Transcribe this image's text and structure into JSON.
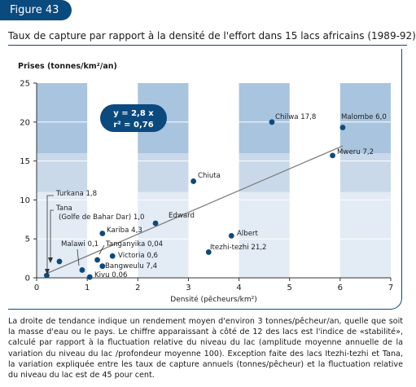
{
  "figure_label": "Figure 43",
  "title": "Taux de capture par rapport à la densité de l'effort dans 15 lacs africains (1989-92)",
  "note": "La droite de tendance indique un rendement moyen d'environ 3 tonnes/pêcheur/an, quelle que soit la masse d'eau ou le pays. Le chiffre apparaissant à côté de 12 des lacs est l'indice de «stabilité», calculé par rapport à la fluctuation relative du niveau du lac (amplitude moyenne annuelle de la variation du niveau du lac /profondeur moyenne 100). Exception faite des lacs Itezhi-tezhi et Tana, la variation expliquée entre les taux de capture annuels (tonnes/pêcheur) et la fluctuation relative du niveau du lac est de 45 pour cent.",
  "colors": {
    "accent": "#0b4a7e",
    "band_top": "#a9c4de",
    "band_mid": "#c9d9ea",
    "band_low": "#e3ebf5",
    "point": "#0b4a7e",
    "trend": "#7f7f7f"
  },
  "chart_data": {
    "type": "scatter",
    "title": "Taux de capture par rapport à la densité de l'effort dans 15 lacs africains (1989-92)",
    "xlabel": "Densité (pêcheurs/km²)",
    "ylabel": "Prises (tonnes/km²/an)",
    "xlim": [
      0,
      7
    ],
    "ylim": [
      0,
      25
    ],
    "xticks": [
      0,
      1,
      2,
      3,
      4,
      5,
      6,
      7
    ],
    "yticks": [
      0,
      5,
      10,
      15,
      20,
      25
    ],
    "grid": false,
    "trendline": {
      "equation": "y = 2,8 x",
      "r2": "r² = 0,76",
      "slope": 2.8,
      "x_range": [
        0.15,
        6.05
      ]
    },
    "points": [
      {
        "x": 0.2,
        "y": 0.3,
        "label": "Turkana 1,8"
      },
      {
        "x": 0.45,
        "y": 2.1,
        "label": "Tana\n(Golfe de Bahar Dar) 1,0"
      },
      {
        "x": 0.9,
        "y": 1.0,
        "label": "Malawi 0,1"
      },
      {
        "x": 1.05,
        "y": 0.1,
        "label": "Kivu 0,06"
      },
      {
        "x": 1.3,
        "y": 5.7,
        "label": "Kariba 4,3"
      },
      {
        "x": 1.2,
        "y": 2.3,
        "label": "Tanganyika 0,04"
      },
      {
        "x": 1.5,
        "y": 2.8,
        "label": "Victoria 0,6"
      },
      {
        "x": 1.3,
        "y": 1.5,
        "label": "Bangweulu 7,4"
      },
      {
        "x": 2.35,
        "y": 7.0,
        "label": "Edward"
      },
      {
        "x": 3.1,
        "y": 12.4,
        "label": "Chiuta"
      },
      {
        "x": 3.4,
        "y": 3.3,
        "label": "Itezhi-tezhi 21,2"
      },
      {
        "x": 3.85,
        "y": 5.4,
        "label": "Albert"
      },
      {
        "x": 4.65,
        "y": 20.0,
        "label": "Chilwa 17,8"
      },
      {
        "x": 5.85,
        "y": 15.7,
        "label": "Mweru 7,2"
      },
      {
        "x": 6.05,
        "y": 19.3,
        "label": "Malombe 6,0"
      }
    ]
  }
}
